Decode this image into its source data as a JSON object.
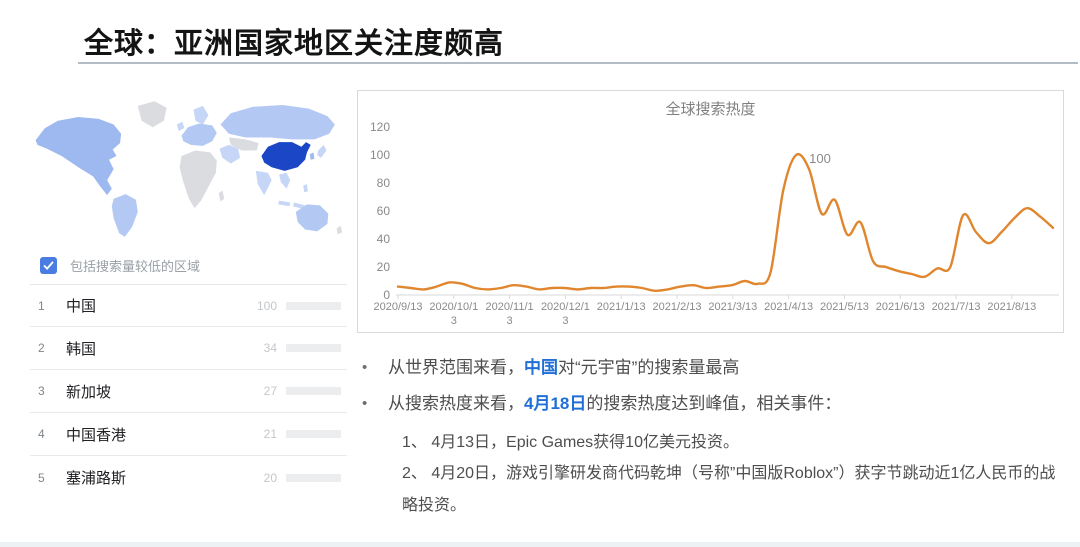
{
  "slide": {
    "title": "全球：亚洲国家地区关注度颇高",
    "bullet_char": "•"
  },
  "trends_panel": {
    "include_low_volume_label": "包括搜索量较低的区域",
    "checkbox_checked": true,
    "regions": [
      {
        "rank": 1,
        "name": "中国",
        "value": 100
      },
      {
        "rank": 2,
        "name": "韩国",
        "value": 34
      },
      {
        "rank": 3,
        "name": "新加坡",
        "value": 27
      },
      {
        "rank": 4,
        "name": "中国香港",
        "value": 21
      },
      {
        "rank": 5,
        "name": "塞浦路斯",
        "value": 20
      }
    ]
  },
  "chart_data": {
    "type": "line",
    "title": "全球搜索热度",
    "x_interval": "weekly",
    "x_tick_labels": [
      "2020/9/13",
      "2020/10/13",
      "2020/11/13",
      "2020/12/13",
      "2021/1/13",
      "2021/2/13",
      "2021/3/13",
      "2021/4/13",
      "2021/5/13",
      "2021/6/13",
      "2021/7/13",
      "2021/8/13"
    ],
    "y_ticks": [
      0,
      20,
      40,
      60,
      80,
      100,
      120
    ],
    "ylim": [
      0,
      120
    ],
    "values": [
      6,
      5,
      4,
      6,
      9,
      8,
      5,
      4,
      5,
      7,
      6,
      4,
      5,
      5,
      4,
      5,
      5,
      6,
      6,
      5,
      3,
      4,
      6,
      7,
      5,
      6,
      7,
      10,
      8,
      16,
      75,
      100,
      90,
      58,
      68,
      43,
      52,
      24,
      20,
      17,
      15,
      13,
      19,
      20,
      57,
      45,
      37,
      45,
      55,
      62,
      56,
      48
    ],
    "peak_annotation": {
      "label": "100",
      "index": 31
    },
    "grid": false,
    "legend": "none"
  },
  "notes": {
    "bullets": [
      {
        "prefix": "从世界范围来看，",
        "highlight": "中国",
        "suffix": "对“元宇宙”的搜索量最高"
      },
      {
        "prefix": "从搜索热度来看，",
        "highlight": "4月18日",
        "suffix": "的搜索热度达到峰值，相关事件："
      }
    ],
    "events": [
      "1、 4月13日，Epic Games获得10亿美元投资。",
      "2、 4月20日，游戏引擎研发商代码乾坤（号称”中国版Roblox”）获字节跳动近1亿人民币的战略投资。"
    ]
  },
  "colors": {
    "google_blue": "#4a7de2",
    "accent_blue": "#1f6fd6",
    "china_blue": "#1b46c6",
    "line_orange": "#e0862e"
  }
}
